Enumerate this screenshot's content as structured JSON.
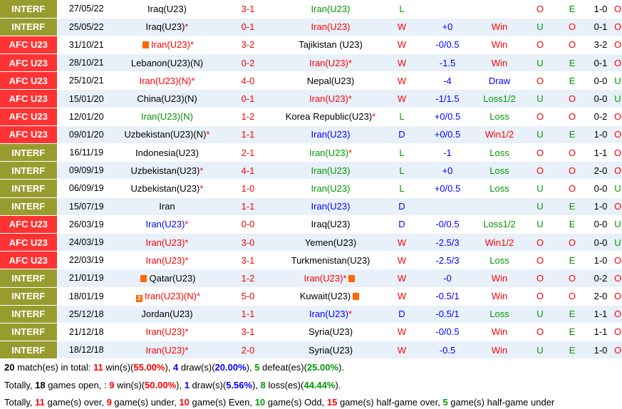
{
  "colors": {
    "interf": "#989c2f",
    "afc": "#ff3333",
    "win": "#ff0000",
    "draw": "#0000ff",
    "loss": "#009900"
  },
  "rows": [
    {
      "league": "INTERF",
      "date": "27/05/22",
      "home": "Iraq(U23)",
      "hs": "",
      "score": "3-1",
      "away": "Iran(U23)",
      "as": "",
      "home_cls": "",
      "away_cls": "green",
      "res": "L",
      "hc": "",
      "hr": "",
      "ou1": "O",
      "ou2": "E",
      "ht": "1-0",
      "ou3": "O"
    },
    {
      "league": "INTERF",
      "date": "25/05/22",
      "home": "Iraq(U23)",
      "hs": "*",
      "score": "0-1",
      "away": "Iran(U23)",
      "as": "",
      "home_cls": "",
      "away_cls": "red",
      "res": "W",
      "hc": "+0",
      "hr": "Win",
      "ou1": "U",
      "ou2": "O",
      "ht": "0-1",
      "ou3": "O"
    },
    {
      "league": "AFC U23",
      "date": "31/10/21",
      "home": "Iran(U23)",
      "hs": "*",
      "score": "3-2",
      "away": "Tajikistan (U23)",
      "as": "",
      "home_cls": "red",
      "away_cls": "",
      "res": "W",
      "hc": "-0/0.5",
      "hr": "Win",
      "ou1": "O",
      "ou2": "O",
      "ht": "3-2",
      "ou3": "O",
      "hflag": "1"
    },
    {
      "league": "AFC U23",
      "date": "28/10/21",
      "home": "Lebanon(U23)(N)",
      "hs": "",
      "score": "0-2",
      "away": "Iran(U23)",
      "as": "*",
      "home_cls": "",
      "away_cls": "red",
      "res": "W",
      "hc": "-1.5",
      "hr": "Win",
      "ou1": "U",
      "ou2": "E",
      "ht": "0-1",
      "ou3": "O"
    },
    {
      "league": "AFC U23",
      "date": "25/10/21",
      "home": "Iran(U23)(N)",
      "hs": "*",
      "score": "4-0",
      "away": "Nepal(U23)",
      "as": "",
      "home_cls": "red",
      "away_cls": "",
      "res": "W",
      "hc": "-4",
      "hr": "Draw",
      "ou1": "O",
      "ou2": "E",
      "ht": "0-0",
      "ou3": "U"
    },
    {
      "league": "AFC U23",
      "date": "15/01/20",
      "home": "China(U23)(N)",
      "hs": "",
      "score": "0-1",
      "away": "Iran(U23)",
      "as": "*",
      "home_cls": "",
      "away_cls": "red",
      "res": "W",
      "hc": "-1/1.5",
      "hr": "Loss1/2",
      "ou1": "U",
      "ou2": "O",
      "ht": "0-0",
      "ou3": "U"
    },
    {
      "league": "AFC U23",
      "date": "12/01/20",
      "home": "Iran(U23)(N)",
      "hs": "",
      "score": "1-2",
      "away": "Korea Republic(U23)",
      "as": "*",
      "home_cls": "green",
      "away_cls": "",
      "res": "L",
      "hc": "+0/0.5",
      "hr": "Loss",
      "ou1": "O",
      "ou2": "O",
      "ht": "0-2",
      "ou3": "O"
    },
    {
      "league": "AFC U23",
      "date": "09/01/20",
      "home": "Uzbekistan(U23)(N)",
      "hs": "*",
      "score": "1-1",
      "away": "Iran(U23)",
      "as": "",
      "home_cls": "",
      "away_cls": "blue",
      "res": "D",
      "hc": "+0/0.5",
      "hr": "Win1/2",
      "ou1": "U",
      "ou2": "E",
      "ht": "1-0",
      "ou3": "O"
    },
    {
      "league": "INTERF",
      "date": "16/11/19",
      "home": "Indonesia(U23)",
      "hs": "",
      "score": "2-1",
      "away": "Iran(U23)",
      "as": "*",
      "home_cls": "",
      "away_cls": "green",
      "res": "L",
      "hc": "-1",
      "hr": "Loss",
      "ou1": "O",
      "ou2": "O",
      "ht": "1-1",
      "ou3": "O"
    },
    {
      "league": "INTERF",
      "date": "09/09/19",
      "home": "Uzbekistan(U23)",
      "hs": "*",
      "score": "4-1",
      "away": "Iran(U23)",
      "as": "",
      "home_cls": "",
      "away_cls": "green",
      "res": "L",
      "hc": "+0",
      "hr": "Loss",
      "ou1": "O",
      "ou2": "O",
      "ht": "2-0",
      "ou3": "O"
    },
    {
      "league": "INTERF",
      "date": "06/09/19",
      "home": "Uzbekistan(U23)",
      "hs": "*",
      "score": "1-0",
      "away": "Iran(U23)",
      "as": "",
      "home_cls": "",
      "away_cls": "green",
      "res": "L",
      "hc": "+0/0.5",
      "hr": "Loss",
      "ou1": "U",
      "ou2": "O",
      "ht": "0-0",
      "ou3": "U"
    },
    {
      "league": "INTERF",
      "date": "15/07/19",
      "home": "Iran",
      "hs": "",
      "score": "1-1",
      "away": "Iran(U23)",
      "as": "",
      "home_cls": "",
      "away_cls": "blue",
      "res": "D",
      "hc": "",
      "hr": "",
      "ou1": "U",
      "ou2": "E",
      "ht": "1-0",
      "ou3": "O"
    },
    {
      "league": "AFC U23",
      "date": "26/03/19",
      "home": "Iran(U23)",
      "hs": "*",
      "score": "0-0",
      "away": "Iraq(U23)",
      "as": "",
      "home_cls": "blue",
      "away_cls": "",
      "res": "D",
      "hc": "-0/0.5",
      "hr": "Loss1/2",
      "ou1": "U",
      "ou2": "E",
      "ht": "0-0",
      "ou3": "U"
    },
    {
      "league": "AFC U23",
      "date": "24/03/19",
      "home": "Iran(U23)",
      "hs": "*",
      "score": "3-0",
      "away": "Yemen(U23)",
      "as": "",
      "home_cls": "red",
      "away_cls": "",
      "res": "W",
      "hc": "-2.5/3",
      "hr": "Win1/2",
      "ou1": "O",
      "ou2": "O",
      "ht": "0-0",
      "ou3": "U"
    },
    {
      "league": "AFC U23",
      "date": "22/03/19",
      "home": "Iran(U23)",
      "hs": "*",
      "score": "3-1",
      "away": "Turkmenistan(U23)",
      "as": "",
      "home_cls": "red",
      "away_cls": "",
      "res": "W",
      "hc": "-2.5/3",
      "hr": "Loss",
      "ou1": "O",
      "ou2": "E",
      "ht": "1-0",
      "ou3": "O"
    },
    {
      "league": "INTERF",
      "date": "21/01/19",
      "home": "Qatar(U23)",
      "hs": "",
      "score": "1-2",
      "away": "Iran(U23)",
      "as": "*",
      "home_cls": "",
      "away_cls": "red",
      "res": "W",
      "hc": "-0",
      "hr": "Win",
      "ou1": "O",
      "ou2": "O",
      "ht": "0-2",
      "ou3": "O",
      "hflag": "1",
      "aflag": "1"
    },
    {
      "league": "INTERF",
      "date": "18/01/19",
      "home": "Iran(U23)(N)",
      "hs": "*",
      "score": "5-0",
      "away": "Kuwait(U23)",
      "as": "",
      "home_cls": "red",
      "away_cls": "",
      "res": "W",
      "hc": "-0.5/1",
      "hr": "Win",
      "ou1": "O",
      "ou2": "O",
      "ht": "2-0",
      "ou3": "O",
      "hflag": "2",
      "aflag": "1"
    },
    {
      "league": "INTERF",
      "date": "25/12/18",
      "home": "Jordan(U23)",
      "hs": "",
      "score": "1-1",
      "away": "Iran(U23)",
      "as": "*",
      "home_cls": "",
      "away_cls": "blue",
      "res": "D",
      "hc": "-0.5/1",
      "hr": "Loss",
      "ou1": "U",
      "ou2": "E",
      "ht": "1-1",
      "ou3": "O"
    },
    {
      "league": "INTERF",
      "date": "21/12/18",
      "home": "Iran(U23)",
      "hs": "*",
      "score": "3-1",
      "away": "Syria(U23)",
      "as": "",
      "home_cls": "red",
      "away_cls": "",
      "res": "W",
      "hc": "-0/0.5",
      "hr": "Win",
      "ou1": "O",
      "ou2": "E",
      "ht": "1-1",
      "ou3": "O"
    },
    {
      "league": "INTERF",
      "date": "18/12/18",
      "home": "Iran(U23)",
      "hs": "*",
      "score": "2-0",
      "away": "Syria(U23)",
      "as": "",
      "home_cls": "red",
      "away_cls": "",
      "res": "W",
      "hc": "-0.5",
      "hr": "Win",
      "ou1": "U",
      "ou2": "E",
      "ht": "1-0",
      "ou3": "O"
    }
  ],
  "summary": {
    "line1": {
      "t1": " match(es) in total: ",
      "n": "20",
      "w": "11",
      "t2": " win(s)(",
      "wp": "55.00%",
      "t3": "), ",
      "d": "4",
      "t4": " draw(s)(",
      "dp": "20.00%",
      "t5": "), ",
      "l": "5",
      "t6": " defeat(es)(",
      "lp": "25.00%",
      "t7": ")."
    },
    "line2": {
      "t0": "Totally, ",
      "n": "18",
      "t1": " games open, : ",
      "w": "9",
      "t2": " win(s)(",
      "wp": "50.00%",
      "t3": "), ",
      "d": "1",
      "t4": " draw(s)(",
      "dp": "5.56%",
      "t5": "), ",
      "l": "8",
      "t6": " loss(es)(",
      "lp": "44.44%",
      "t7": ")."
    },
    "line3": {
      "t0": "Totally, ",
      "a": "11",
      "t1": " game(s) over, ",
      "b": "9",
      "t2": " game(s) under, ",
      "c": "10",
      "t3": " game(s) Even, ",
      "d": "10",
      "t4": " game(s) Odd, ",
      "e": "15",
      "t5": " game(s) half-game over, ",
      "f": "5",
      "t6": " game(s) half-game under"
    }
  }
}
